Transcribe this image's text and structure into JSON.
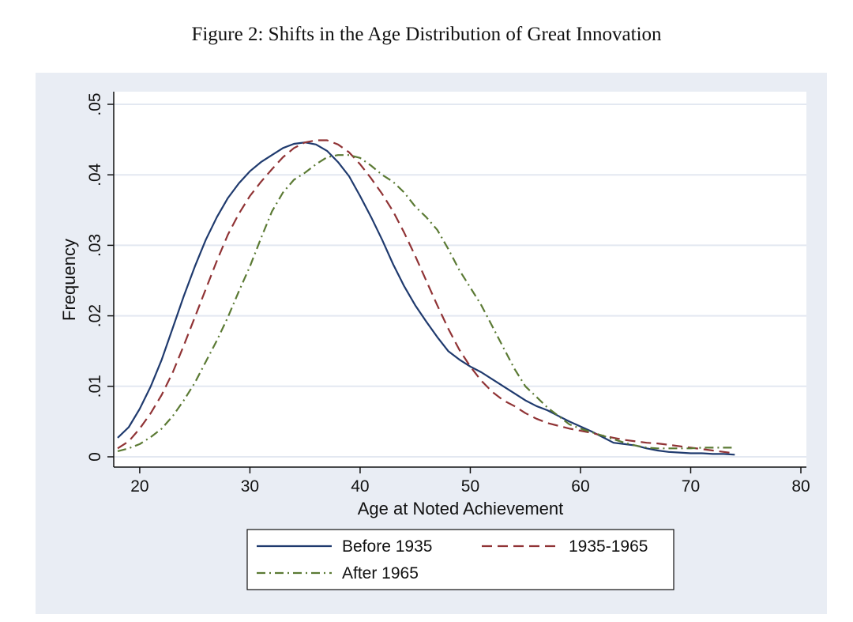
{
  "figure": {
    "title": "Figure 2:   Shifts in the Age Distribution of Great Innovation"
  },
  "colors": {
    "panel_bg": "#e9edf4",
    "plot_bg": "#ffffff",
    "grid": "#e3e8f1",
    "axis": "#111111",
    "before_1935": "#1f3a6e",
    "between_1935_1965": "#903335",
    "after_1965": "#5b7a34"
  },
  "chart_data": {
    "type": "line",
    "title": "",
    "xlabel": "Age at Noted Achievement",
    "ylabel": "Frequency",
    "xlim": [
      18,
      80
    ],
    "ylim": [
      0,
      0.05
    ],
    "x_ticks": [
      20,
      30,
      40,
      50,
      60,
      70,
      80
    ],
    "x_tick_labels": [
      "20",
      "30",
      "40",
      "50",
      "60",
      "70",
      "80"
    ],
    "y_ticks": [
      0,
      0.01,
      0.02,
      0.03,
      0.04,
      0.05
    ],
    "y_tick_labels": [
      "0",
      ".01",
      ".02",
      ".03",
      ".04",
      ".05"
    ],
    "grid": true,
    "legend_position": "bottom",
    "series": [
      {
        "name": "Before 1935",
        "style": "solid",
        "color": "#1f3a6e",
        "x": [
          18,
          19,
          20,
          21,
          22,
          23,
          24,
          25,
          26,
          27,
          28,
          29,
          30,
          31,
          32,
          33,
          34,
          35,
          36,
          37,
          38,
          39,
          40,
          41,
          42,
          43,
          44,
          45,
          46,
          47,
          48,
          49,
          50,
          51,
          52,
          53,
          54,
          55,
          56,
          57,
          58,
          59,
          60,
          61,
          62,
          63,
          64,
          65,
          66,
          67,
          68,
          69,
          70,
          71,
          72,
          73,
          74
        ],
        "y": [
          0.0027,
          0.0042,
          0.0068,
          0.01,
          0.0138,
          0.0183,
          0.0228,
          0.027,
          0.0308,
          0.034,
          0.0367,
          0.0388,
          0.0405,
          0.0418,
          0.0428,
          0.0438,
          0.0444,
          0.0446,
          0.0443,
          0.0434,
          0.0418,
          0.0398,
          0.037,
          0.034,
          0.0308,
          0.0273,
          0.0242,
          0.0215,
          0.0192,
          0.017,
          0.015,
          0.0138,
          0.0128,
          0.012,
          0.011,
          0.01,
          0.009,
          0.008,
          0.0072,
          0.0066,
          0.0058,
          0.005,
          0.0043,
          0.0036,
          0.0028,
          0.002,
          0.0018,
          0.0016,
          0.0012,
          0.0009,
          0.0007,
          0.0006,
          0.0005,
          0.0005,
          0.0004,
          0.0004,
          0.0003
        ]
      },
      {
        "name": "1935-1965",
        "style": "dashed",
        "color": "#903335",
        "x": [
          18,
          19,
          20,
          21,
          22,
          23,
          24,
          25,
          26,
          27,
          28,
          29,
          30,
          31,
          32,
          33,
          34,
          35,
          36,
          37,
          38,
          39,
          40,
          41,
          42,
          43,
          44,
          45,
          46,
          47,
          48,
          49,
          50,
          51,
          52,
          53,
          54,
          55,
          56,
          57,
          58,
          59,
          60,
          61,
          62,
          63,
          64,
          65,
          66,
          67,
          68,
          69,
          70,
          71,
          72,
          73,
          74
        ],
        "y": [
          0.0012,
          0.0022,
          0.004,
          0.0062,
          0.0088,
          0.012,
          0.0158,
          0.0198,
          0.0238,
          0.0278,
          0.0315,
          0.0345,
          0.037,
          0.039,
          0.0408,
          0.0425,
          0.0438,
          0.0446,
          0.0449,
          0.0449,
          0.0443,
          0.0432,
          0.0415,
          0.0395,
          0.0373,
          0.0348,
          0.0318,
          0.0285,
          0.025,
          0.0215,
          0.0182,
          0.0152,
          0.0128,
          0.0108,
          0.0092,
          0.008,
          0.0072,
          0.0062,
          0.0054,
          0.0048,
          0.0044,
          0.004,
          0.0037,
          0.0034,
          0.003,
          0.0027,
          0.0024,
          0.0022,
          0.002,
          0.0019,
          0.0017,
          0.0015,
          0.0013,
          0.0011,
          0.0009,
          0.0007,
          0.0005
        ]
      },
      {
        "name": "After 1965",
        "style": "dashdot",
        "color": "#5b7a34",
        "x": [
          18,
          19,
          20,
          21,
          22,
          23,
          24,
          25,
          26,
          27,
          28,
          29,
          30,
          31,
          32,
          33,
          34,
          35,
          36,
          37,
          38,
          39,
          40,
          41,
          42,
          43,
          44,
          45,
          46,
          47,
          48,
          49,
          50,
          51,
          52,
          53,
          54,
          55,
          56,
          57,
          58,
          59,
          60,
          61,
          62,
          63,
          64,
          65,
          66,
          67,
          68,
          69,
          70,
          71,
          72,
          73,
          74
        ],
        "y": [
          0.0008,
          0.0012,
          0.0018,
          0.0028,
          0.004,
          0.0058,
          0.008,
          0.0105,
          0.0135,
          0.0165,
          0.0198,
          0.0235,
          0.027,
          0.031,
          0.0348,
          0.0375,
          0.0393,
          0.0403,
          0.0415,
          0.0425,
          0.0428,
          0.0428,
          0.0424,
          0.0413,
          0.04,
          0.039,
          0.0375,
          0.0355,
          0.034,
          0.0322,
          0.0295,
          0.0265,
          0.024,
          0.0215,
          0.0185,
          0.0155,
          0.0125,
          0.01,
          0.0085,
          0.007,
          0.0058,
          0.0046,
          0.004,
          0.0035,
          0.003,
          0.0025,
          0.002,
          0.0016,
          0.0013,
          0.0012,
          0.0012,
          0.0012,
          0.0012,
          0.0013,
          0.0013,
          0.0013,
          0.0013
        ]
      }
    ]
  }
}
